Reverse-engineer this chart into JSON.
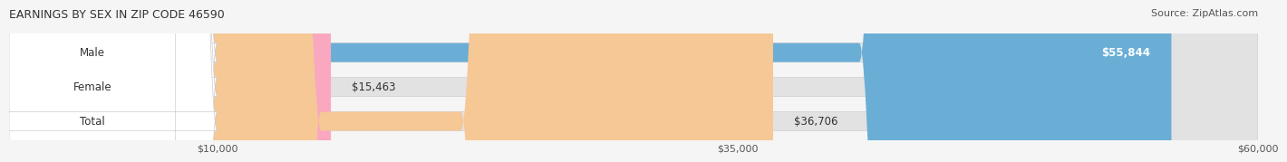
{
  "title": "EARNINGS BY SEX IN ZIP CODE 46590",
  "source": "Source: ZipAtlas.com",
  "categories": [
    "Male",
    "Female",
    "Total"
  ],
  "values": [
    55844,
    15463,
    36706
  ],
  "bar_colors": [
    "#6aaed6",
    "#f9a8c0",
    "#f5c896"
  ],
  "label_colors": [
    "#6aaed6",
    "#f9a8c0",
    "#f5c896"
  ],
  "value_labels": [
    "$55,844",
    "$15,463",
    "$36,706"
  ],
  "x_min": 0,
  "x_max": 60000,
  "x_ticks": [
    10000,
    35000,
    60000
  ],
  "x_tick_labels": [
    "$10,000",
    "$35,000",
    "$60,000"
  ],
  "background_color": "#f0f0f0",
  "bar_background": "#e8e8e8",
  "title_fontsize": 9,
  "source_fontsize": 8,
  "label_fontsize": 8.5,
  "value_fontsize": 8.5,
  "tick_fontsize": 8
}
